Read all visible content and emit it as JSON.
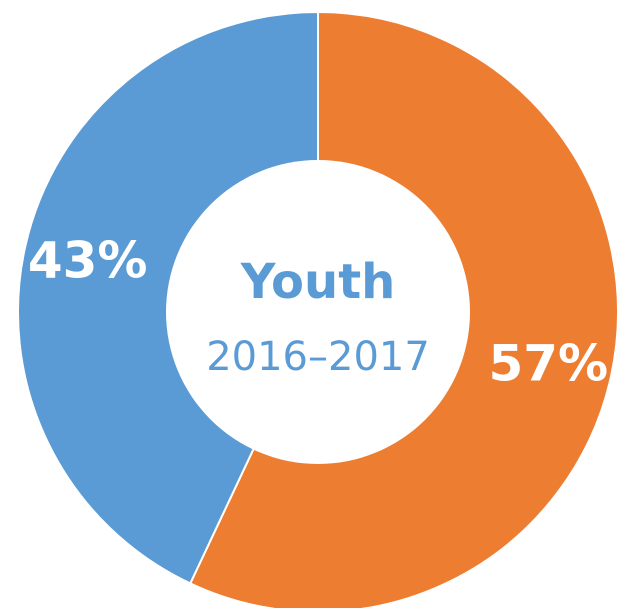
{
  "chart_data": {
    "type": "pie",
    "variant": "donut",
    "center_title": "Youth",
    "center_subtitle": "2016–2017",
    "slices": [
      {
        "label": "57%",
        "value": 57,
        "color": "#ed7d31"
      },
      {
        "label": "43%",
        "value": 43,
        "color": "#5b9bd5"
      }
    ],
    "start_position": "top",
    "direction": "clockwise",
    "legend": "none",
    "center_text_color": "#5b9bd5"
  }
}
